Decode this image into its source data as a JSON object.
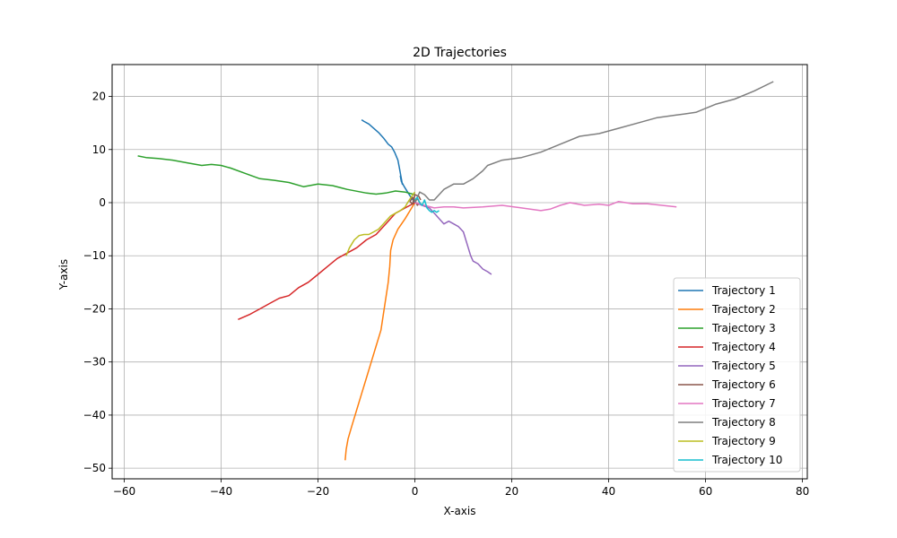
{
  "chart_data": {
    "type": "line",
    "title": "2D Trajectories",
    "xlabel": "X-axis",
    "ylabel": "Y-axis",
    "xlim": [
      -62.5,
      81.0
    ],
    "ylim": [
      -52.0,
      26.0
    ],
    "xticks": [
      -60,
      -40,
      -20,
      0,
      20,
      40,
      60,
      80
    ],
    "yticks": [
      -50,
      -40,
      -30,
      -20,
      -10,
      0,
      10,
      20
    ],
    "xtick_labels": [
      "−60",
      "−40",
      "−20",
      "0",
      "20",
      "40",
      "60",
      "80"
    ],
    "ytick_labels": [
      "−50",
      "−40",
      "−30",
      "−20",
      "−10",
      "0",
      "10",
      "20"
    ],
    "grid": true,
    "legend_position": "lower-right",
    "series": [
      {
        "name": "Trajectory 1",
        "color": "#1f77b4",
        "x": [
          0,
          -0.8,
          -1.5,
          -2.2,
          -2.8,
          -3.0,
          -2.6,
          -3.2,
          -3.5,
          -4.2,
          -4.8,
          -5.5,
          -6.5,
          -7.5,
          -8.5,
          -9.5,
          -10.5,
          -11.0
        ],
        "y": [
          0,
          1.0,
          2.0,
          3.0,
          4.0,
          5.0,
          3.5,
          6.5,
          8.0,
          9.5,
          10.5,
          11.0,
          12.2,
          13.2,
          14.0,
          14.8,
          15.3,
          15.6
        ]
      },
      {
        "name": "Trajectory 2",
        "color": "#ff7f0e",
        "x": [
          0,
          -1.0,
          -2.0,
          -3.5,
          -4.5,
          -5.0,
          -5.2,
          -5.5,
          -6.0,
          -6.5,
          -7.0,
          -8.0,
          -9.0,
          -10.0,
          -11.0,
          -12.0,
          -13.0,
          -13.8,
          -14.2,
          -14.4
        ],
        "y": [
          0,
          -1.5,
          -3.0,
          -5.0,
          -7.0,
          -9.0,
          -12.0,
          -15.0,
          -18.0,
          -21.0,
          -24.0,
          -27.0,
          -30.0,
          -33.0,
          -36.0,
          -39.0,
          -42.0,
          -44.5,
          -46.5,
          -48.5
        ]
      },
      {
        "name": "Trajectory 3",
        "color": "#2ca02c",
        "x": [
          0,
          -2.0,
          -4.0,
          -6.0,
          -8.0,
          -10.0,
          -14.0,
          -17.0,
          -20.0,
          -23.0,
          -26.0,
          -29.0,
          -32.0,
          -35.0,
          -38.0,
          -40.0,
          -42.0,
          -44.0,
          -47.0,
          -50.0,
          -53.0,
          -55.5,
          -57.2
        ],
        "y": [
          1.5,
          2.0,
          2.2,
          1.8,
          1.6,
          1.8,
          2.5,
          3.2,
          3.5,
          3.0,
          3.8,
          4.2,
          4.5,
          5.5,
          6.5,
          7.0,
          7.2,
          7.0,
          7.5,
          8.0,
          8.3,
          8.5,
          8.8
        ]
      },
      {
        "name": "Trajectory 4",
        "color": "#d62728",
        "x": [
          0,
          -1.0,
          -2.0,
          -3.0,
          -4.0,
          -5.0,
          -6.0,
          -7.0,
          -8.0,
          -10.0,
          -12.0,
          -14.0,
          -16.0,
          -18.0,
          -20.0,
          -22.0,
          -24.0,
          -26.0,
          -28.0,
          -30.0,
          -32.0,
          -34.0,
          -36.5
        ],
        "y": [
          0,
          -0.5,
          -1.0,
          -1.5,
          -2.0,
          -3.0,
          -4.0,
          -5.0,
          -6.0,
          -7.0,
          -8.5,
          -9.5,
          -10.5,
          -12.0,
          -13.5,
          -15.0,
          -16.0,
          -17.5,
          -18.0,
          -19.0,
          -20.0,
          -21.0,
          -22.0
        ]
      },
      {
        "name": "Trajectory 5",
        "color": "#9467bd",
        "x": [
          0,
          1.5,
          3.0,
          4.0,
          5.0,
          6.0,
          7.0,
          8.0,
          9.0,
          10.0,
          10.5,
          11.0,
          11.5,
          12.0,
          13.0,
          14.0,
          15.0,
          15.8
        ],
        "y": [
          0,
          -0.5,
          -1.0,
          -2.0,
          -3.0,
          -4.0,
          -3.5,
          -4.0,
          -4.5,
          -5.5,
          -7.0,
          -8.5,
          -10.0,
          -11.0,
          -11.5,
          -12.5,
          -13.0,
          -13.5
        ]
      },
      {
        "name": "Trajectory 6",
        "color": "#8c564b",
        "x": [
          0,
          0.5,
          1.0,
          0.5,
          0.0,
          -0.5,
          -1.0,
          -0.5,
          0.0,
          0.8,
          1.2
        ],
        "y": [
          0,
          0.8,
          0.0,
          -0.5,
          0.5,
          1.0,
          0.2,
          -0.3,
          1.5,
          1.2,
          0.5
        ]
      },
      {
        "name": "Trajectory 7",
        "color": "#e377c2",
        "x": [
          0,
          2.0,
          4.0,
          6.0,
          8.0,
          10.0,
          14.0,
          18.0,
          22.0,
          26.0,
          28.0,
          30.0,
          32.0,
          35.0,
          38.0,
          40.0,
          42.0,
          45.0,
          48.0,
          51.0,
          54.0
        ],
        "y": [
          0,
          -0.5,
          -1.0,
          -0.8,
          -0.8,
          -1.0,
          -0.8,
          -0.5,
          -1.0,
          -1.5,
          -1.2,
          -0.5,
          0.0,
          -0.5,
          -0.3,
          -0.5,
          0.2,
          -0.2,
          -0.2,
          -0.5,
          -0.8
        ]
      },
      {
        "name": "Trajectory 8",
        "color": "#7f7f7f",
        "x": [
          0,
          1.0,
          2.0,
          3.0,
          4.0,
          5.0,
          6.0,
          8.0,
          10.0,
          12.0,
          14.0,
          15.0,
          18.0,
          22.0,
          26.0,
          30.0,
          34.0,
          38.0,
          42.0,
          46.0,
          50.0,
          54.0,
          58.0,
          62.0,
          66.0,
          70.0,
          74.0
        ],
        "y": [
          0,
          2.0,
          1.5,
          0.5,
          0.5,
          1.5,
          2.5,
          3.5,
          3.5,
          4.5,
          6.0,
          7.0,
          8.0,
          8.5,
          9.5,
          11.0,
          12.5,
          13.0,
          14.0,
          15.0,
          16.0,
          16.5,
          17.0,
          18.5,
          19.5,
          21.0,
          22.8
        ]
      },
      {
        "name": "Trajectory 9",
        "color": "#bcbd22",
        "x": [
          0,
          -0.8,
          -1.5,
          -2.0,
          -3.0,
          -4.0,
          -5.0,
          -5.5,
          -6.5,
          -7.5,
          -8.5,
          -9.5,
          -10.5,
          -11.5,
          -12.5,
          -13.5,
          -14.2
        ],
        "y": [
          2.0,
          1.0,
          0.0,
          -0.8,
          -1.5,
          -2.0,
          -2.5,
          -3.0,
          -4.0,
          -5.0,
          -5.5,
          -6.0,
          -6.0,
          -6.2,
          -7.0,
          -8.5,
          -10.0
        ]
      },
      {
        "name": "Trajectory 10",
        "color": "#17becf",
        "x": [
          0,
          0.5,
          1.0,
          1.5,
          2.0,
          2.5,
          3.0,
          3.5,
          4.0,
          4.5,
          5.0
        ],
        "y": [
          0.5,
          1.0,
          0.0,
          -0.5,
          0.5,
          -1.0,
          -1.5,
          -1.8,
          -1.5,
          -1.8,
          -1.5
        ]
      }
    ]
  }
}
